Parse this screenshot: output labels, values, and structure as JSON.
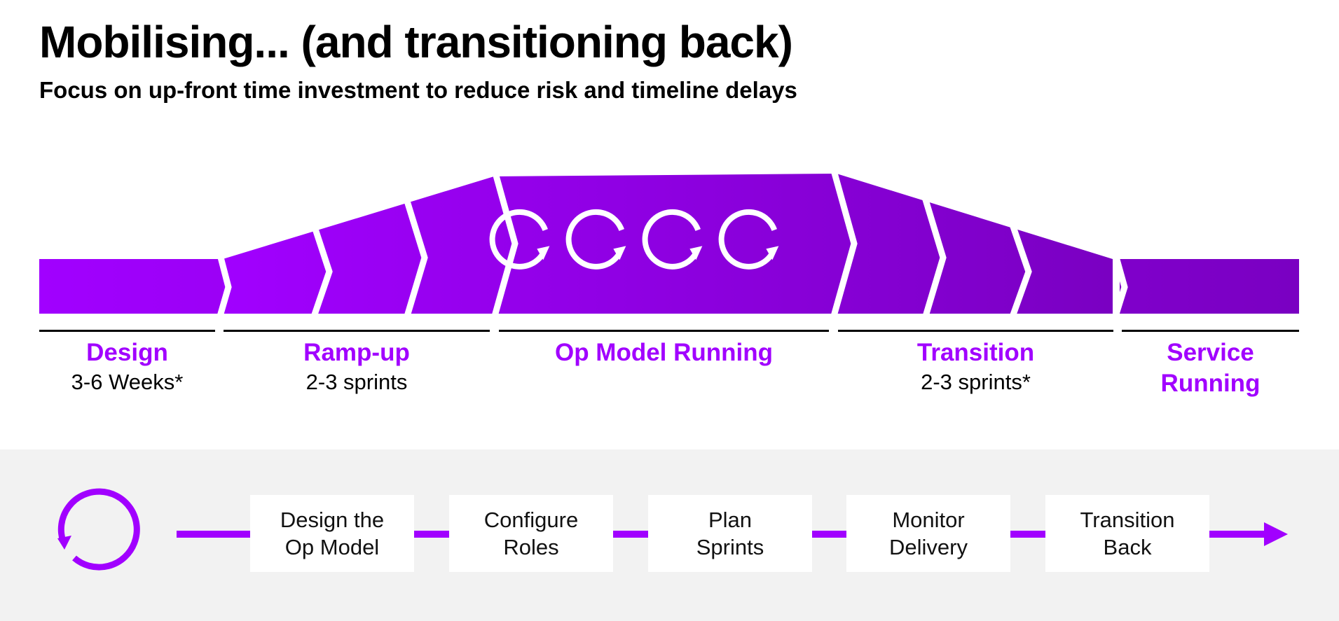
{
  "header": {
    "title": "Mobilising... (and transitioning back)",
    "subtitle": "Focus on up-front time investment to reduce risk and timeline delays"
  },
  "colors": {
    "accent": "#a100ff",
    "band_start": "#a100ff",
    "band_end": "#7a00c2",
    "bottom_panel": "#f2f2f2"
  },
  "phases": [
    {
      "name": "Design",
      "duration": "3-6 Weeks*"
    },
    {
      "name": "Ramp-up",
      "duration": "2-3 sprints"
    },
    {
      "name": "Op Model Running",
      "duration": ""
    },
    {
      "name": "Transition",
      "duration": "2-3 sprints*"
    },
    {
      "name": "Service Running",
      "duration": ""
    }
  ],
  "cycle_icons": [
    "cycle-icon",
    "cycle-icon",
    "cycle-icon",
    "cycle-icon"
  ],
  "steps": [
    {
      "label": "Design the\nOp Model"
    },
    {
      "label": "Configure\nRoles"
    },
    {
      "label": "Plan\nSprints"
    },
    {
      "label": "Monitor\nDelivery"
    },
    {
      "label": "Transition\nBack"
    }
  ]
}
